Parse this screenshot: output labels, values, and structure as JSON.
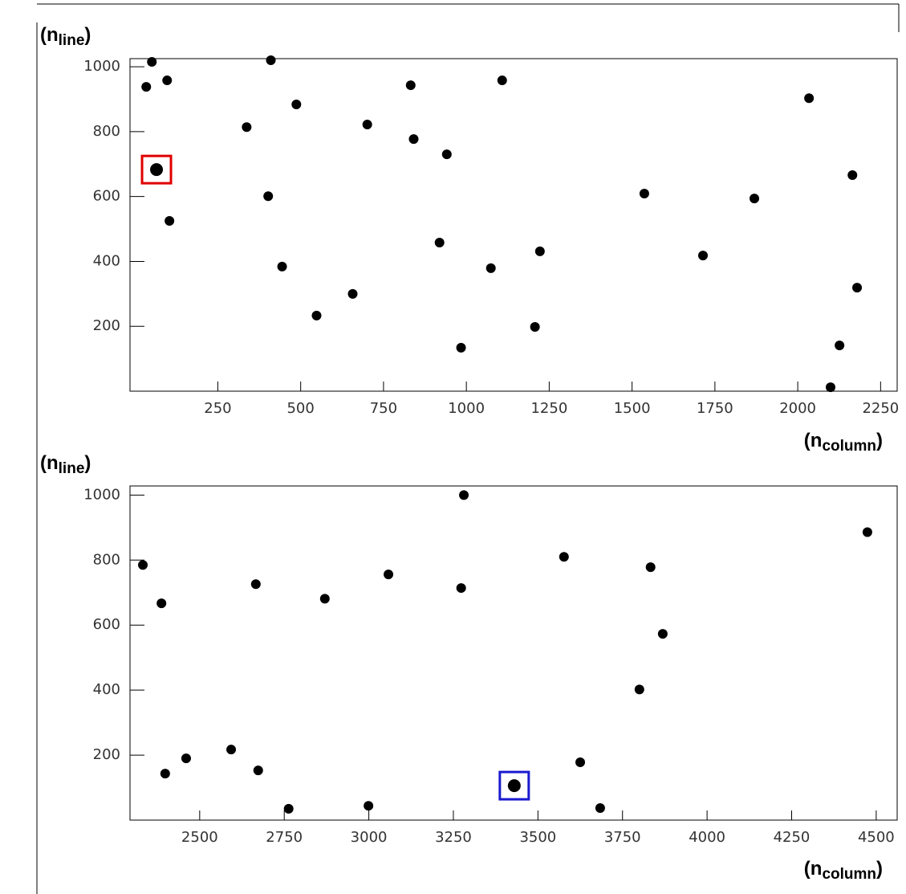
{
  "chart_data": [
    {
      "type": "scatter",
      "ylabel": {
        "start": "(n",
        "sub": "line",
        "end": ")"
      },
      "xlabel": {
        "start": "(n",
        "sub": "column",
        "end": ")"
      },
      "xlim": [
        -15,
        2300
      ],
      "ylim": [
        0,
        1025
      ],
      "xticks": [
        250,
        500,
        750,
        1000,
        1250,
        1500,
        1750,
        2000,
        2250
      ],
      "yticks": [
        200,
        400,
        600,
        800,
        1000
      ],
      "color": "#000000",
      "x": [
        51,
        410,
        97,
        34,
        1108,
        487,
        337,
        701,
        841,
        941,
        402,
        2034,
        2165,
        1869,
        1537,
        1222,
        1074,
        1714,
        919,
        444,
        657,
        548,
        1207,
        984,
        2179,
        2099,
        104,
        2126,
        832
      ],
      "values": [
        1015,
        1020,
        958,
        938,
        958,
        884,
        814,
        822,
        777,
        730,
        601,
        903,
        666,
        594,
        609,
        431,
        379,
        418,
        458,
        384,
        300,
        233,
        198,
        134,
        319,
        12,
        525,
        141,
        943
      ],
      "highlight": {
        "x": 65,
        "y": 683,
        "color": "#e00000"
      }
    },
    {
      "type": "scatter",
      "ylabel": {
        "start": "(n",
        "sub": "line",
        "end": ")"
      },
      "xlabel": {
        "start": "(n",
        "sub": "column",
        "end": ")"
      },
      "xlim": [
        2294,
        4562
      ],
      "ylim": [
        0,
        1028
      ],
      "xticks": [
        2500,
        2750,
        3000,
        3250,
        3500,
        3750,
        4000,
        4250,
        4500
      ],
      "yticks": [
        200,
        400,
        600,
        800,
        1000
      ],
      "color": "#000000",
      "x": [
        3281,
        4474,
        2332,
        2387,
        2666,
        2870,
        3058,
        3273,
        3577,
        3833,
        3869,
        3800,
        2398,
        2460,
        2593,
        2673,
        2999,
        2763,
        3625,
        3684
      ],
      "values": [
        1000,
        886,
        785,
        667,
        726,
        681,
        756,
        714,
        810,
        778,
        573,
        402,
        143,
        190,
        217,
        153,
        44,
        35,
        178,
        37
      ],
      "highlight": {
        "x": 3430,
        "y": 106,
        "color": "#1a1ad0"
      }
    }
  ]
}
